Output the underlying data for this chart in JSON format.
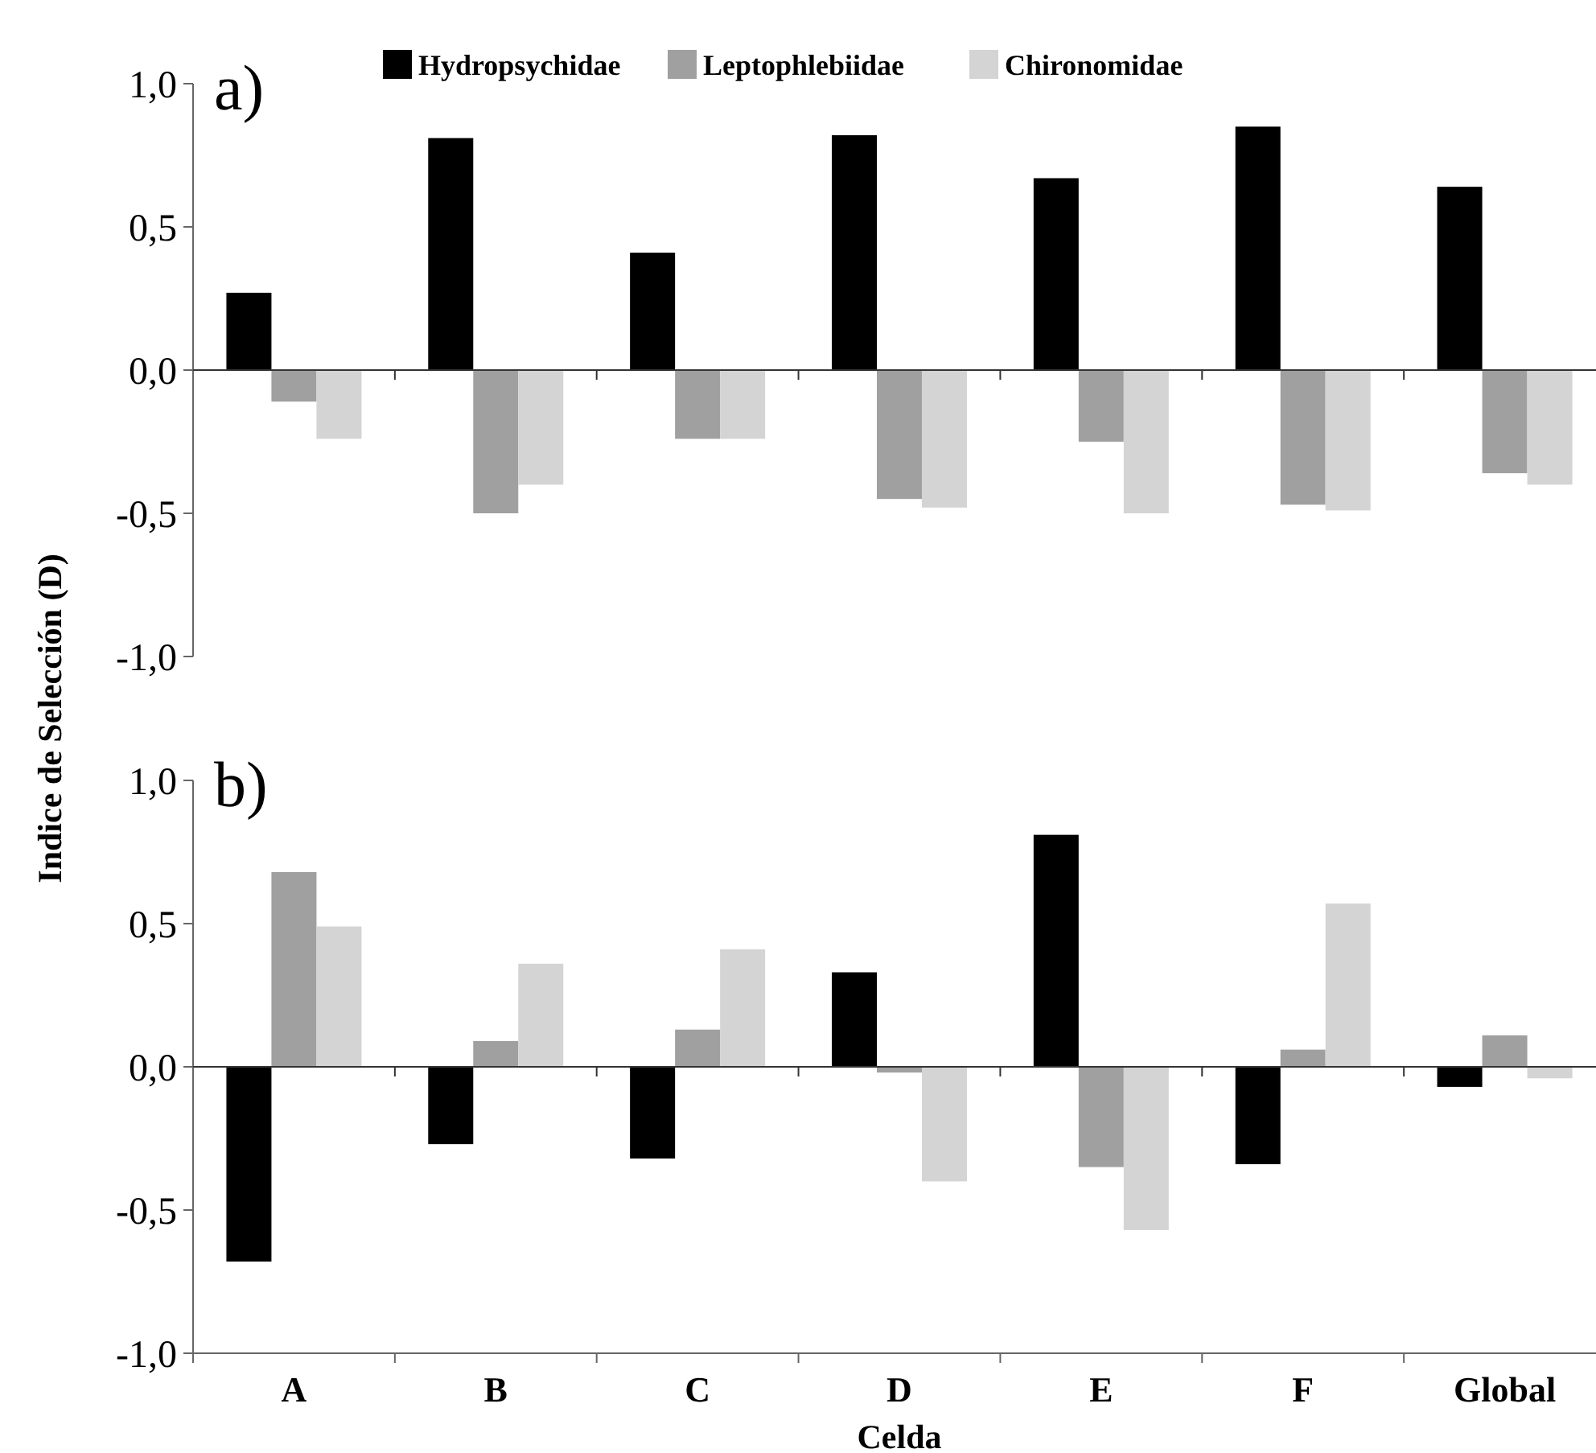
{
  "chart_data": [
    {
      "type": "bar",
      "ylabel": "Indice de Selección (D)",
      "annotations": [
        "a)"
      ],
      "legend": "top",
      "tick_labels": "y",
      "categories": [
        null,
        null,
        null,
        null,
        null,
        null,
        null
      ],
      "ylim": [
        -1,
        1
      ],
      "yticks": [
        {
          "value": -1,
          "label": "-1,0"
        },
        {
          "value": -0.5,
          "label": "-0,5"
        },
        {
          "value": 0,
          "label": "0,0"
        },
        {
          "value": 0.5,
          "label": "0,5"
        },
        {
          "value": 1,
          "label": "1,0"
        }
      ],
      "series": [
        {
          "name": "Hydropsychidae",
          "color": "#000000",
          "values": [
            0.27,
            0.81,
            0.41,
            0.82,
            0.67,
            0.85,
            0.64
          ]
        },
        {
          "name": "Leptophlebiidae",
          "color": "#a0a0a0",
          "values": [
            -0.11,
            -0.5,
            -0.24,
            -0.45,
            -0.25,
            -0.47,
            -0.36
          ]
        },
        {
          "name": "Chironomidae",
          "color": "#d4d4d4",
          "values": [
            -0.24,
            -0.4,
            -0.24,
            -0.48,
            -0.5,
            -0.49,
            -0.4
          ]
        }
      ]
    },
    {
      "type": "bar",
      "xlabel": "Celda",
      "annotations": [
        "b)"
      ],
      "categories": [
        "A",
        "B",
        "C",
        "D",
        "E",
        "F",
        "Global"
      ],
      "ylim": [
        -1,
        1
      ],
      "yticks": [
        {
          "value": -1,
          "label": "-1,0"
        },
        {
          "value": -0.5,
          "label": "-0,5"
        },
        {
          "value": 0,
          "label": "0,0"
        },
        {
          "value": 0.5,
          "label": "0,5"
        },
        {
          "value": 1,
          "label": "1,0"
        }
      ],
      "series": [
        {
          "color": "#000000",
          "values": [
            -0.68,
            -0.27,
            -0.32,
            0.33,
            0.81,
            -0.34,
            -0.07
          ]
        },
        {
          "color": "#a0a0a0",
          "values": [
            0.68,
            0.09,
            0.13,
            -0.02,
            -0.35,
            0.06,
            0.11
          ]
        },
        {
          "color": "#d4d4d4",
          "values": [
            0.49,
            0.36,
            0.41,
            -0.4,
            -0.57,
            0.57,
            -0.04
          ]
        }
      ]
    }
  ]
}
